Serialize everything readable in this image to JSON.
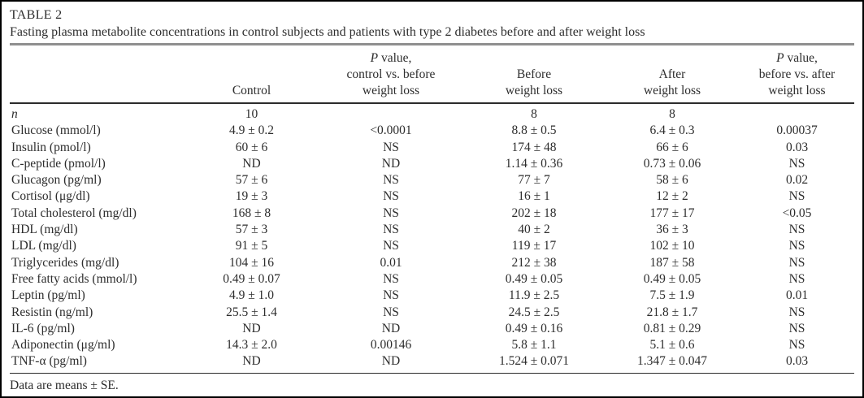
{
  "figure": {
    "title": "TABLE 2",
    "caption": "Fasting plasma metabolite concentrations in control subjects and patients with type 2 diabetes before and after weight loss",
    "footnote": "Data are means ± SE."
  },
  "table": {
    "columns": [
      {
        "id": "parameter",
        "lines": [
          ""
        ]
      },
      {
        "id": "control",
        "lines": [
          "Control"
        ]
      },
      {
        "id": "p-control-vs-before",
        "lines": [
          "P value,",
          "control vs. before",
          "weight loss"
        ],
        "italicize_first_char": true
      },
      {
        "id": "before-weight-loss",
        "lines": [
          "Before",
          "weight loss"
        ]
      },
      {
        "id": "after-weight-loss",
        "lines": [
          "After",
          "weight loss"
        ]
      },
      {
        "id": "p-before-vs-after",
        "lines": [
          "P value,",
          "before vs. after",
          "weight loss"
        ],
        "italicize_first_char": true
      }
    ],
    "rows": [
      {
        "label": "n",
        "italic_label": true,
        "values": [
          "10",
          "",
          "8",
          "8",
          ""
        ]
      },
      {
        "label": "Glucose (mmol/l)",
        "values": [
          "4.9 ± 0.2",
          "<0.0001",
          "8.8 ± 0.5",
          "6.4 ± 0.3",
          "0.00037"
        ]
      },
      {
        "label": "Insulin (pmol/l)",
        "values": [
          "60 ± 6",
          "NS",
          "174 ± 48",
          "66 ± 6",
          "0.03"
        ]
      },
      {
        "label": "C-peptide (pmol/l)",
        "values": [
          "ND",
          "ND",
          "1.14 ± 0.36",
          "0.73 ± 0.06",
          "NS"
        ]
      },
      {
        "label": "Glucagon (pg/ml)",
        "values": [
          "57 ± 6",
          "NS",
          "77 ± 7",
          "58 ± 6",
          "0.02"
        ]
      },
      {
        "label": "Cortisol (μg/dl)",
        "values": [
          "19 ± 3",
          "NS",
          "16 ± 1",
          "12 ± 2",
          "NS"
        ]
      },
      {
        "label": "Total cholesterol (mg/dl)",
        "values": [
          "168 ± 8",
          "NS",
          "202 ± 18",
          "177 ± 17",
          "<0.05"
        ]
      },
      {
        "label": "HDL (mg/dl)",
        "values": [
          "57 ± 3",
          "NS",
          "40 ± 2",
          "36 ± 3",
          "NS"
        ]
      },
      {
        "label": "LDL (mg/dl)",
        "values": [
          "91 ± 5",
          "NS",
          "119 ± 17",
          "102 ± 10",
          "NS"
        ]
      },
      {
        "label": "Triglycerides (mg/dl)",
        "values": [
          "104 ± 16",
          "0.01",
          "212 ± 38",
          "187 ± 58",
          "NS"
        ]
      },
      {
        "label": "Free fatty acids (mmol/l)",
        "values": [
          "0.49 ± 0.07",
          "NS",
          "0.49 ± 0.05",
          "0.49 ± 0.05",
          "NS"
        ]
      },
      {
        "label": "Leptin (pg/ml)",
        "values": [
          "4.9 ± 1.0",
          "NS",
          "11.9 ± 2.5",
          "7.5 ± 1.9",
          "0.01"
        ]
      },
      {
        "label": "Resistin (ng/ml)",
        "values": [
          "25.5 ± 1.4",
          "NS",
          "24.5 ± 2.5",
          "21.8 ± 1.7",
          "NS"
        ]
      },
      {
        "label": "IL-6 (pg/ml)",
        "values": [
          "ND",
          "ND",
          "0.49 ± 0.16",
          "0.81 ± 0.29",
          "NS"
        ]
      },
      {
        "label": "Adiponectin (μg/ml)",
        "values": [
          "14.3 ± 2.0",
          "0.00146",
          "5.8 ± 1.1",
          "5.1 ± 0.6",
          "NS"
        ]
      },
      {
        "label": "TNF-α (pg/ml)",
        "values": [
          "ND",
          "ND",
          "1.524 ± 0.071",
          "1.347 ± 0.047",
          "0.03"
        ]
      }
    ]
  }
}
